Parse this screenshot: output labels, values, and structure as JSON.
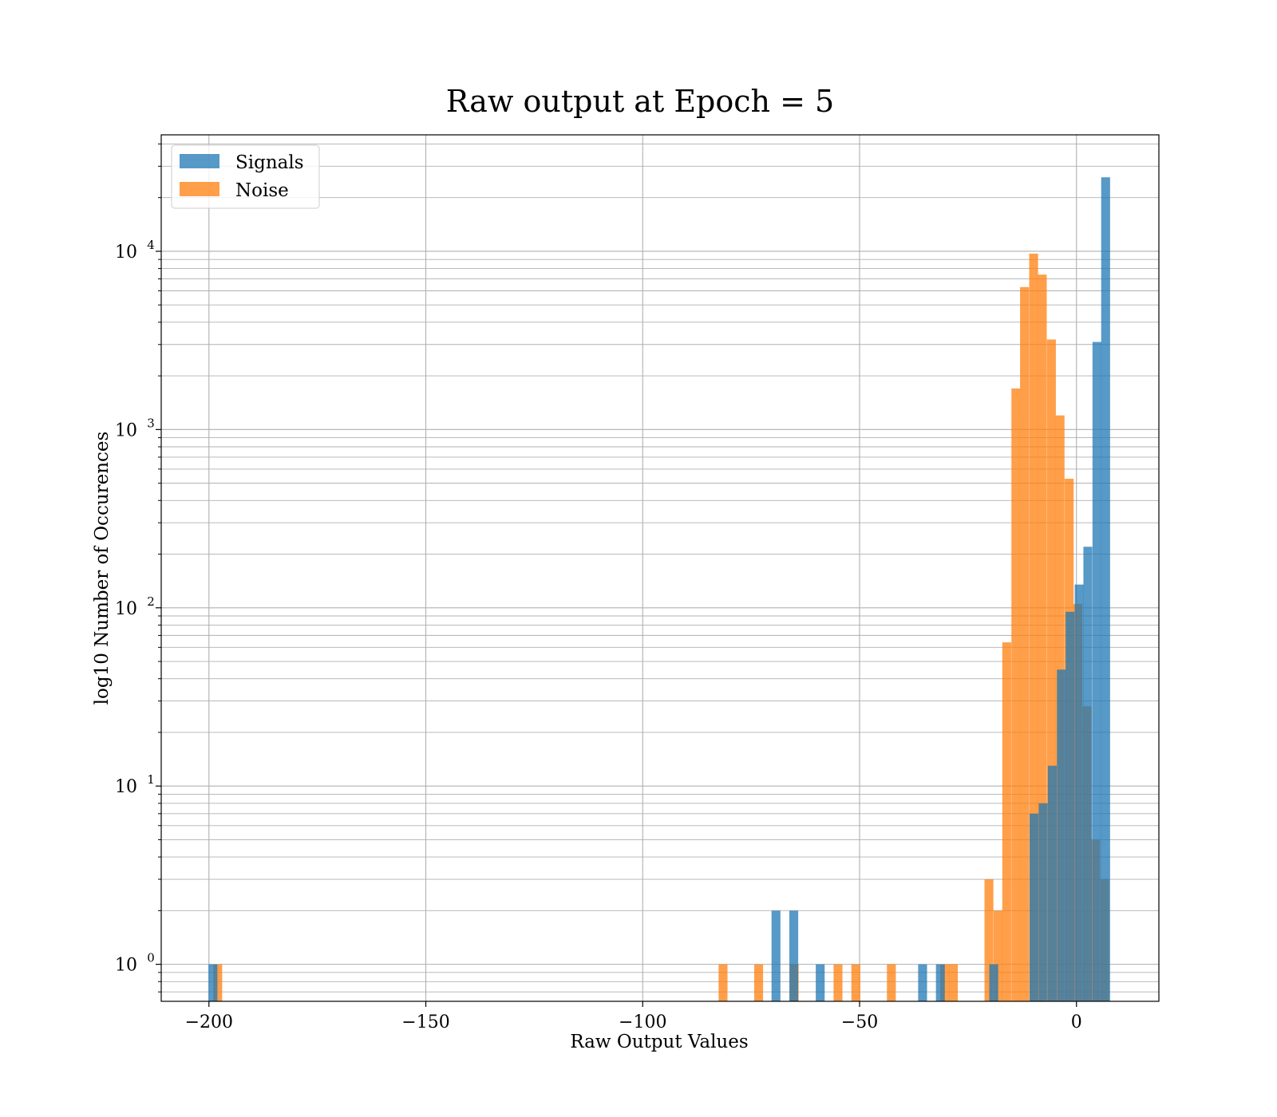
{
  "chart_data": {
    "type": "bar",
    "subtype": "histogram",
    "title": "Raw output at Epoch = 5",
    "xlabel": "Raw Output Values",
    "ylabel": "log10 Number of Occurences",
    "xlim": [
      -211,
      19
    ],
    "ylim": [
      0.62,
      45000
    ],
    "yscale": "log",
    "grid": true,
    "legend_position": "top-left",
    "xticks": [
      -200,
      -150,
      -100,
      -50,
      0
    ],
    "xtick_labels": [
      "−200",
      "−150",
      "−100",
      "−50",
      "0"
    ],
    "yticks": [
      1,
      10,
      100,
      1000,
      10000
    ],
    "ytick_labels": [
      "10",
      "10",
      "10",
      "10",
      "10"
    ],
    "ytick_exponents": [
      "0",
      "1",
      "2",
      "3",
      "4"
    ],
    "series": [
      {
        "name": "Noise",
        "color": "#ff7f0e",
        "opacity": 0.75,
        "bin_width": 2.05,
        "bars": [
          {
            "x0": -199.0,
            "count": 1
          },
          {
            "x0": -82.5,
            "count": 1
          },
          {
            "x0": -74.3,
            "count": 1
          },
          {
            "x0": -66.1,
            "count": 1
          },
          {
            "x0": -56.0,
            "count": 1
          },
          {
            "x0": -51.9,
            "count": 1
          },
          {
            "x0": -43.7,
            "count": 1
          },
          {
            "x0": -31.4,
            "count": 1
          },
          {
            "x0": -29.4,
            "count": 1
          },
          {
            "x0": -21.2,
            "count": 3
          },
          {
            "x0": -19.1,
            "count": 2
          },
          {
            "x0": -17.1,
            "count": 64
          },
          {
            "x0": -15.0,
            "count": 1700
          },
          {
            "x0": -13.0,
            "count": 6300
          },
          {
            "x0": -10.9,
            "count": 9700
          },
          {
            "x0": -8.9,
            "count": 7400
          },
          {
            "x0": -6.8,
            "count": 3200
          },
          {
            "x0": -4.8,
            "count": 1200
          },
          {
            "x0": -2.7,
            "count": 530
          },
          {
            "x0": -0.7,
            "count": 105
          },
          {
            "x0": 1.4,
            "count": 28
          },
          {
            "x0": 3.4,
            "count": 5
          },
          {
            "x0": 5.5,
            "count": 3
          }
        ]
      },
      {
        "name": "Signals",
        "color": "#1f77b4",
        "opacity": 0.75,
        "bin_width": 2.05,
        "bars": [
          {
            "x0": -200.1,
            "count": 1
          },
          {
            "x0": -70.3,
            "count": 2
          },
          {
            "x0": -66.2,
            "count": 2
          },
          {
            "x0": -60.1,
            "count": 1
          },
          {
            "x0": -36.5,
            "count": 1
          },
          {
            "x0": -32.4,
            "count": 1
          },
          {
            "x0": -20.1,
            "count": 1
          },
          {
            "x0": -10.8,
            "count": 7
          },
          {
            "x0": -8.7,
            "count": 8
          },
          {
            "x0": -6.6,
            "count": 13
          },
          {
            "x0": -4.5,
            "count": 45
          },
          {
            "x0": -2.5,
            "count": 95
          },
          {
            "x0": -0.4,
            "count": 135
          },
          {
            "x0": 1.6,
            "count": 220
          },
          {
            "x0": 3.7,
            "count": 3100
          },
          {
            "x0": 5.7,
            "count": 26000
          }
        ]
      }
    ],
    "legend": [
      {
        "label": "Signals",
        "color": "#1f77b4"
      },
      {
        "label": "Noise",
        "color": "#ff7f0e"
      }
    ]
  }
}
